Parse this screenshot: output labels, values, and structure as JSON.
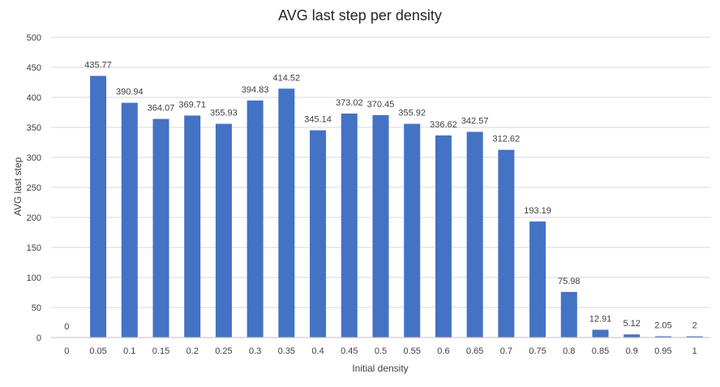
{
  "chart_data": {
    "type": "bar",
    "title": "AVG last step per density",
    "xlabel": "Initial density",
    "ylabel": "AVG last step",
    "ylim": [
      0,
      500
    ],
    "yticks": [
      0,
      50,
      100,
      150,
      200,
      250,
      300,
      350,
      400,
      450,
      500
    ],
    "categories": [
      "0",
      "0.05",
      "0.1",
      "0.15",
      "0.2",
      "0.25",
      "0.3",
      "0.35",
      "0.4",
      "0.45",
      "0.5",
      "0.55",
      "0.6",
      "0.65",
      "0.7",
      "0.75",
      "0.8",
      "0.85",
      "0.9",
      "0.95",
      "1"
    ],
    "values": [
      0,
      435.77,
      390.94,
      364.07,
      369.71,
      355.93,
      394.83,
      414.52,
      345.14,
      373.02,
      370.45,
      355.92,
      336.62,
      342.57,
      312.62,
      193.19,
      75.98,
      12.91,
      5.12,
      2.05,
      2
    ],
    "data_labels": [
      "0",
      "435.77",
      "390.94",
      "364.07",
      "369.71",
      "355.93",
      "394.83",
      "414.52",
      "345.14",
      "373.02",
      "370.45",
      "355.92",
      "336.62",
      "342.57",
      "312.62",
      "193.19",
      "75.98",
      "12.91",
      "5.12",
      "2.05",
      "2"
    ],
    "grid": true,
    "legend": "none",
    "colors": {
      "bar": "#4472C4",
      "grid": "#D9D9D9",
      "axis": "#BFBFBF",
      "text": "#404040",
      "title": "#262626"
    }
  }
}
